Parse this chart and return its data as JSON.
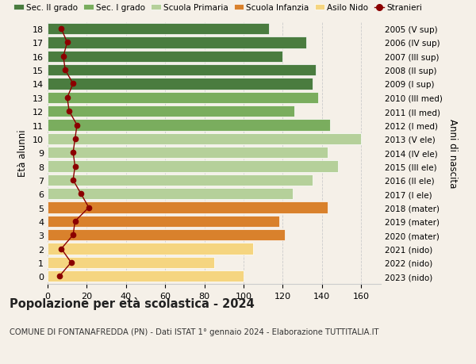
{
  "ages": [
    18,
    17,
    16,
    15,
    14,
    13,
    12,
    11,
    10,
    9,
    8,
    7,
    6,
    5,
    4,
    3,
    2,
    1,
    0
  ],
  "years_labels": [
    "2005 (V sup)",
    "2006 (IV sup)",
    "2007 (III sup)",
    "2008 (II sup)",
    "2009 (I sup)",
    "2010 (III med)",
    "2011 (II med)",
    "2012 (I med)",
    "2013 (V ele)",
    "2014 (IV ele)",
    "2015 (III ele)",
    "2016 (II ele)",
    "2017 (I ele)",
    "2018 (mater)",
    "2019 (mater)",
    "2020 (mater)",
    "2021 (nido)",
    "2022 (nido)",
    "2023 (nido)"
  ],
  "bar_values": [
    113,
    132,
    120,
    137,
    135,
    138,
    126,
    144,
    160,
    143,
    148,
    135,
    125,
    143,
    118,
    121,
    105,
    85,
    100
  ],
  "bar_colors": [
    "#4a7c3f",
    "#4a7c3f",
    "#4a7c3f",
    "#4a7c3f",
    "#4a7c3f",
    "#7aad5e",
    "#7aad5e",
    "#7aad5e",
    "#b5d09a",
    "#b5d09a",
    "#b5d09a",
    "#b5d09a",
    "#b5d09a",
    "#d9812c",
    "#d9812c",
    "#d9812c",
    "#f5d580",
    "#f5d580",
    "#f5d580"
  ],
  "stranieri_values": [
    7,
    10,
    8,
    9,
    13,
    10,
    11,
    15,
    14,
    13,
    14,
    13,
    17,
    21,
    14,
    13,
    7,
    12,
    6
  ],
  "stranieri_color": "#8b0000",
  "legend_labels": [
    "Sec. II grado",
    "Sec. I grado",
    "Scuola Primaria",
    "Scuola Infanzia",
    "Asilo Nido",
    "Stranieri"
  ],
  "legend_colors": [
    "#4a7c3f",
    "#7aad5e",
    "#b5d09a",
    "#d9812c",
    "#f5d580",
    "#8b0000"
  ],
  "title": "Popolazione per età scolastica - 2024",
  "subtitle": "COMUNE DI FONTANAFREDDA (PN) - Dati ISTAT 1° gennaio 2024 - Elaborazione TUTTITALIA.IT",
  "ylabel": "Età alunni",
  "ylabel2": "Anni di nascita",
  "xlim": [
    0,
    170
  ],
  "xticks": [
    0,
    20,
    40,
    60,
    80,
    100,
    120,
    140,
    160
  ],
  "background_color": "#f5f0e8",
  "grid_color": "#cccccc",
  "bar_height": 0.82
}
